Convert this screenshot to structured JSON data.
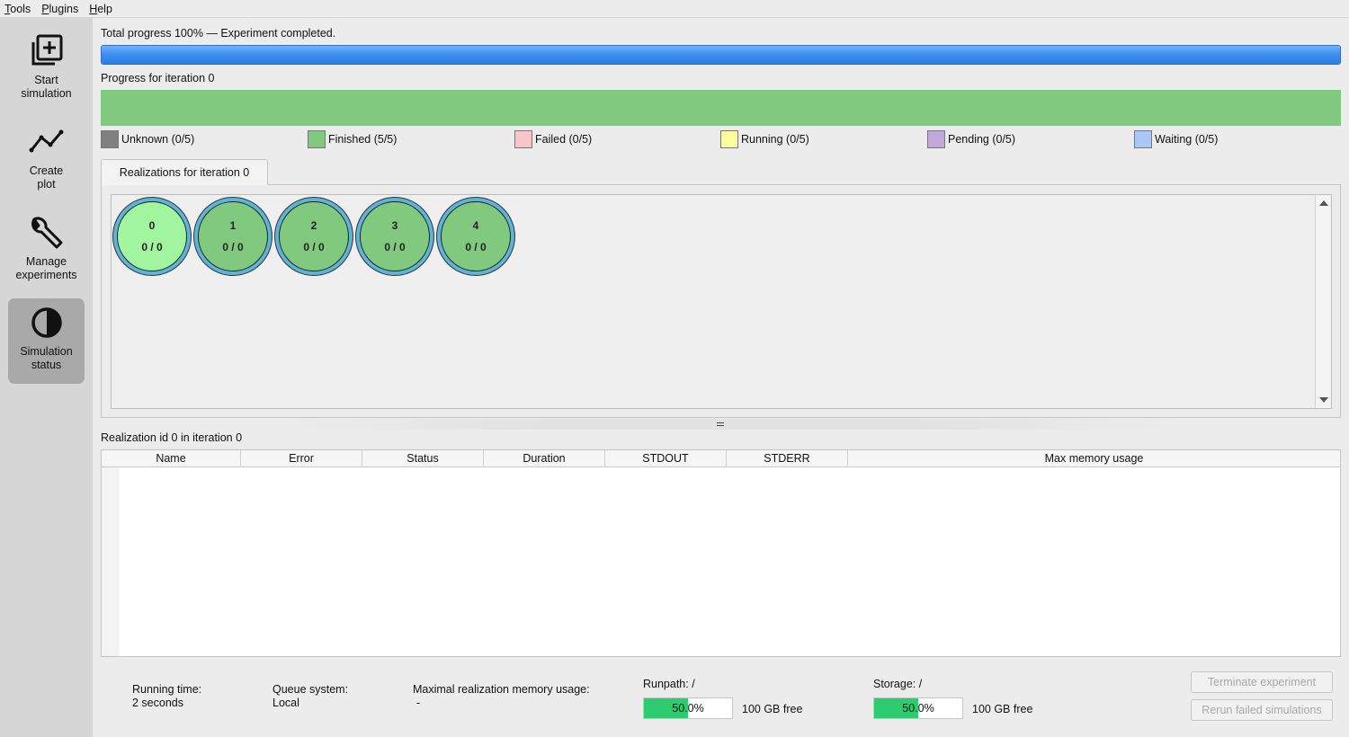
{
  "menu": [
    "Tools",
    "Plugins",
    "Help"
  ],
  "sidebar": {
    "items": [
      {
        "line1": "Start",
        "line2": "simulation",
        "icon": "plus-square-icon"
      },
      {
        "line1": "Create",
        "line2": "plot",
        "icon": "line-chart-icon"
      },
      {
        "line1": "Manage",
        "line2": "experiments",
        "icon": "wrench-icon"
      },
      {
        "line1": "Simulation",
        "line2": "status",
        "icon": "half-circle-icon",
        "active": true
      }
    ]
  },
  "progress": {
    "total_label": "Total progress 100% — Experiment completed.",
    "total_fraction": 1.0,
    "iteration_label": "Progress for iteration 0",
    "iteration_fraction": 1.0,
    "bar_color": "#3d8ef0",
    "iteration_color": "#80c97e"
  },
  "legend": [
    {
      "label": "Unknown (0/5)",
      "color": "#808080"
    },
    {
      "label": "Finished (5/5)",
      "color": "#80c97e"
    },
    {
      "label": "Failed (0/5)",
      "color": "#f8c6c6"
    },
    {
      "label": "Running (0/5)",
      "color": "#fdfd9e"
    },
    {
      "label": "Pending (0/5)",
      "color": "#c0a8d8"
    },
    {
      "label": "Waiting (0/5)",
      "color": "#a8c8f8"
    }
  ],
  "tab": {
    "label": "Realizations for iteration 0"
  },
  "realizations": [
    {
      "id": "0",
      "progress": "0 / 0",
      "selected": true
    },
    {
      "id": "1",
      "progress": "0 / 0"
    },
    {
      "id": "2",
      "progress": "0 / 0"
    },
    {
      "id": "3",
      "progress": "0 / 0"
    },
    {
      "id": "4",
      "progress": "0 / 0"
    }
  ],
  "detail": {
    "title": "Realization id 0 in iteration 0",
    "columns": [
      "Name",
      "Error",
      "Status",
      "Duration",
      "STDOUT",
      "STDERR",
      "Max memory usage"
    ]
  },
  "status": {
    "running_time_label": "Running time:",
    "running_time_value": "2 seconds",
    "queue_label": "Queue system:",
    "queue_value": "Local",
    "memory_label": "Maximal realization memory usage:",
    "memory_value": "-",
    "runpath_label": "Runpath: /",
    "runpath_pct": "50.0%",
    "runpath_fraction": 0.5,
    "runpath_free": "100 GB free",
    "storage_label": "Storage: /",
    "storage_pct": "50.0%",
    "storage_fraction": 0.5,
    "storage_free": "100 GB free"
  },
  "buttons": {
    "terminate": "Terminate experiment",
    "rerun": "Rerun failed simulations"
  }
}
